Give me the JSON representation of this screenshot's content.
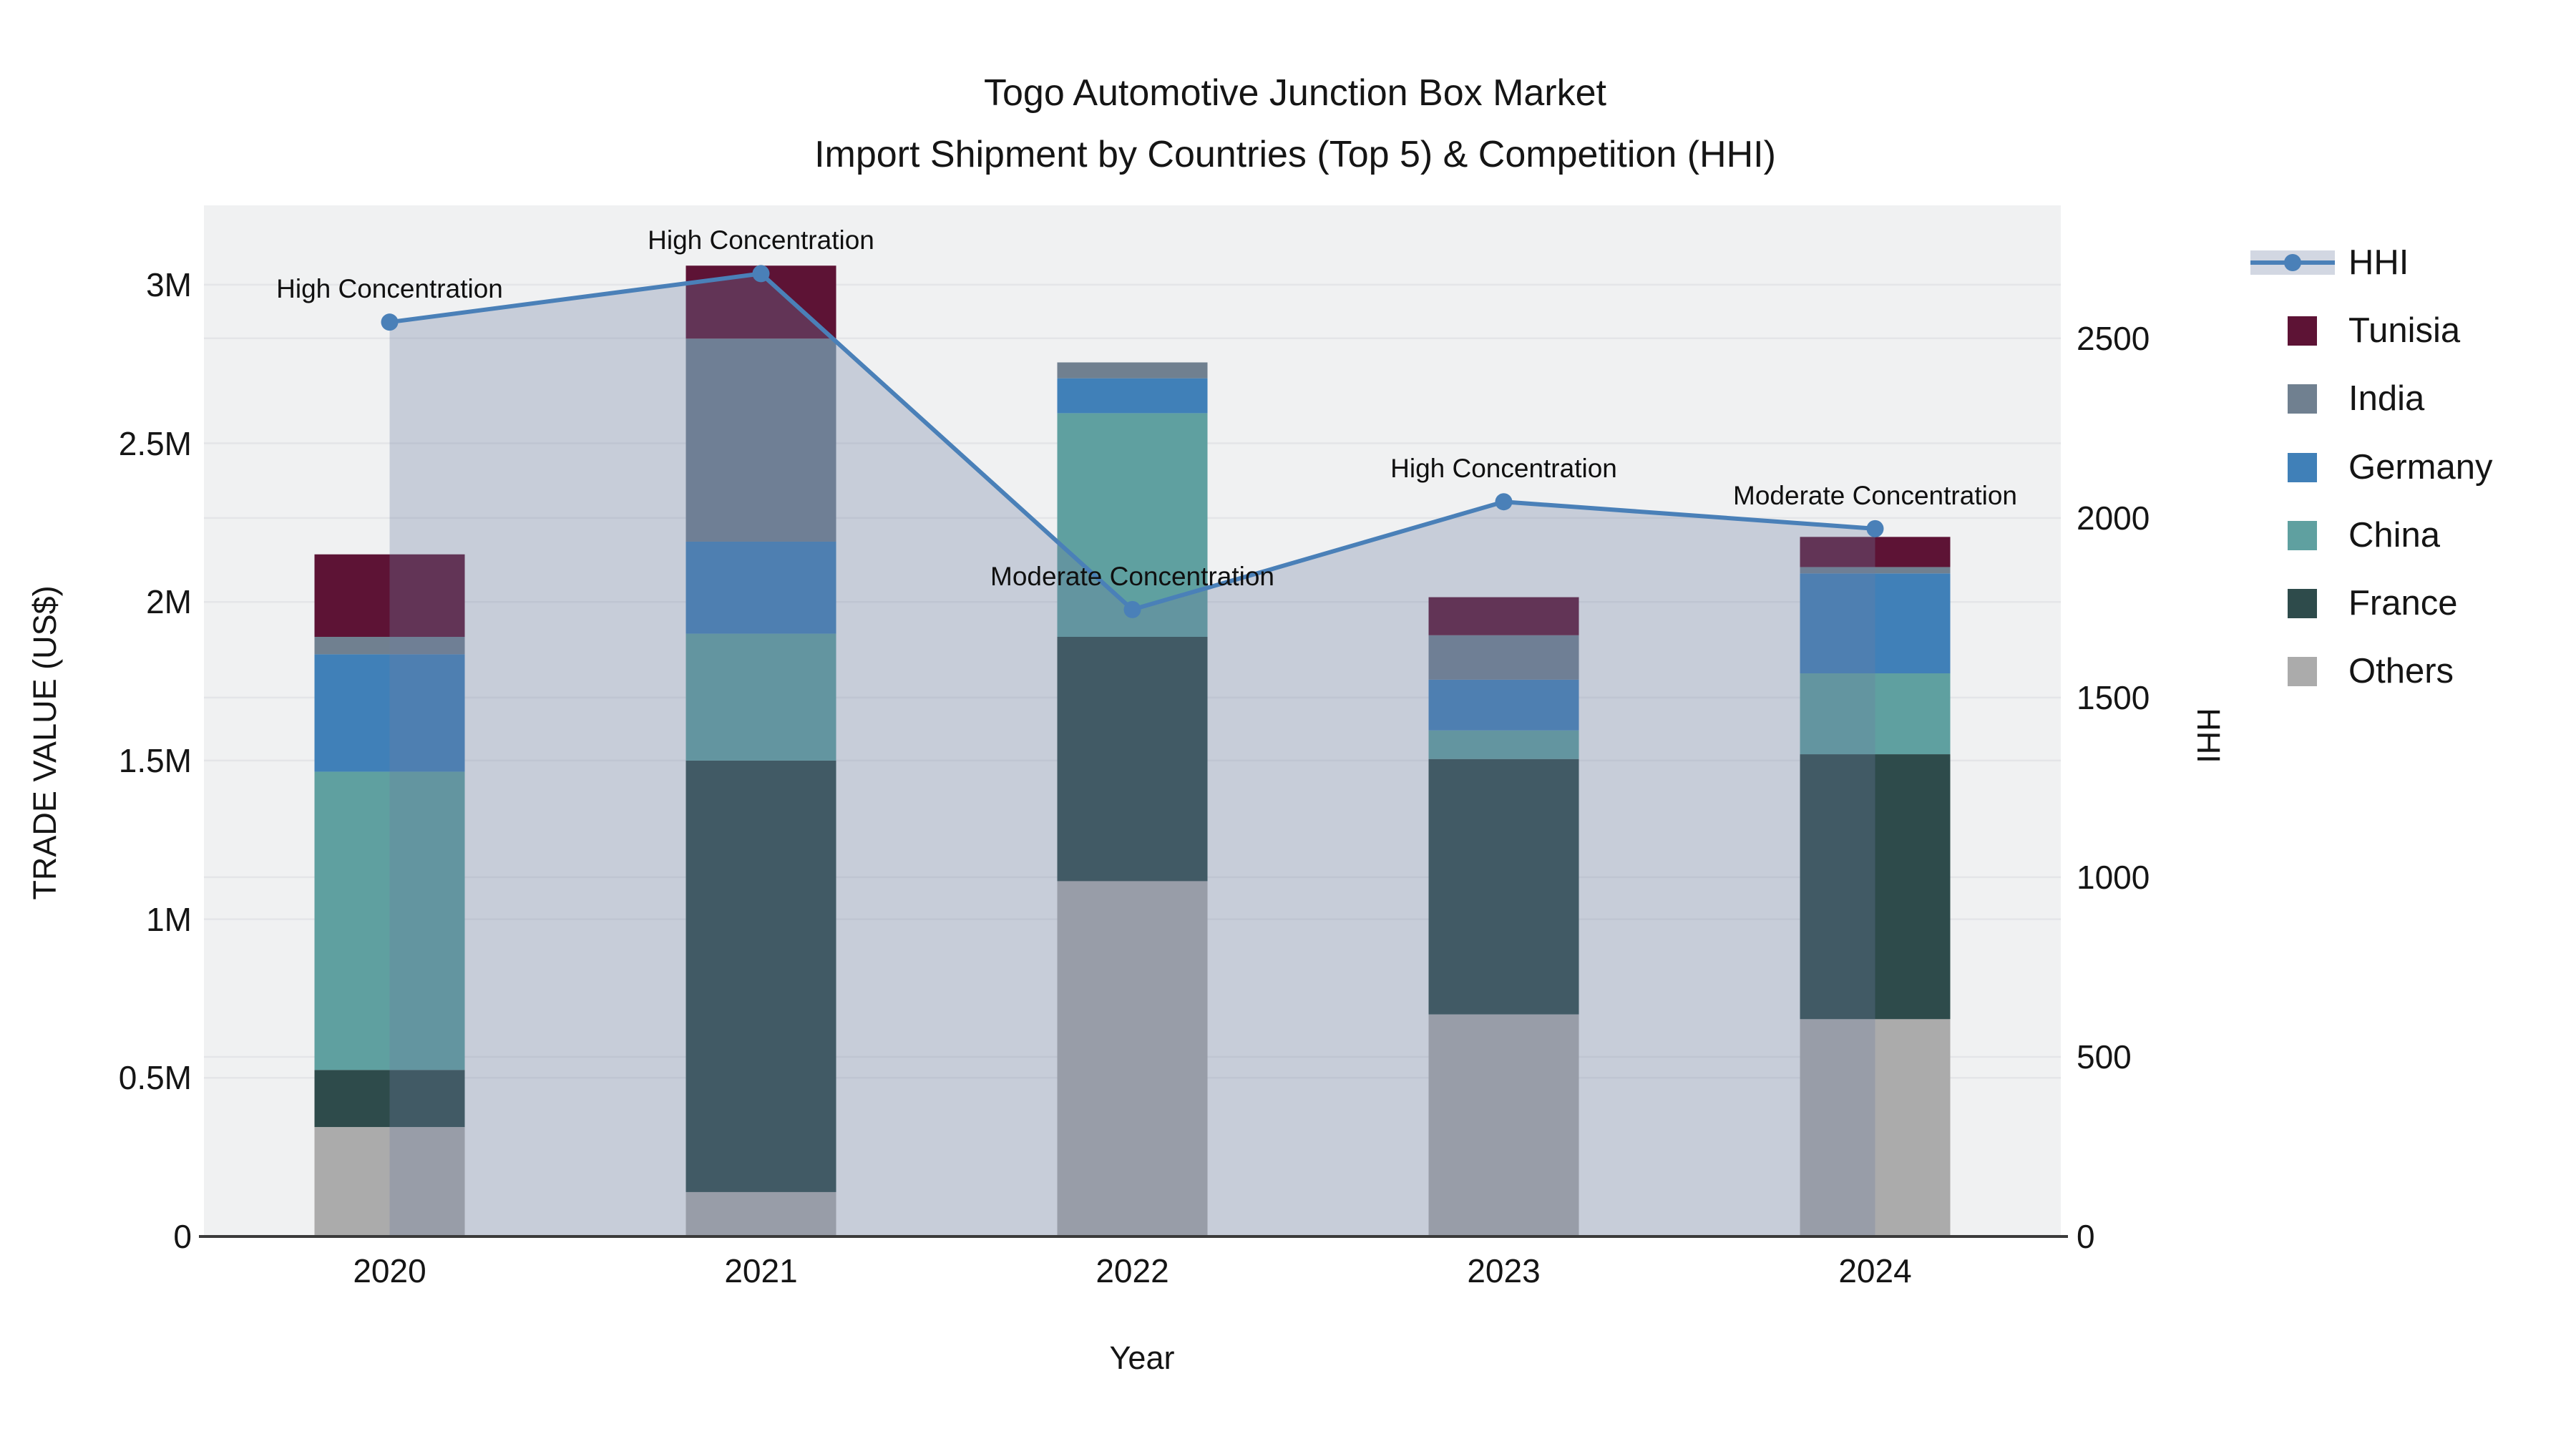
{
  "title": {
    "line1": "Togo Automotive Junction Box Market",
    "line2": "Import Shipment by Countries (Top 5) & Competition (HHI)"
  },
  "axes": {
    "x": {
      "title": "Year",
      "categories": [
        "2020",
        "2021",
        "2022",
        "2023",
        "2024"
      ]
    },
    "y_left": {
      "title": "TRADE VALUE (US$)",
      "ticks": [
        {
          "v": 0,
          "label": "0"
        },
        {
          "v": 0.5,
          "label": "0.5M"
        },
        {
          "v": 1,
          "label": "1M"
        },
        {
          "v": 1.5,
          "label": "1.5M"
        },
        {
          "v": 2,
          "label": "2M"
        },
        {
          "v": 2.5,
          "label": "2.5M"
        },
        {
          "v": 3,
          "label": "3M"
        }
      ]
    },
    "y_right": {
      "title": "HHI",
      "ticks": [
        {
          "v": 0,
          "label": "0"
        },
        {
          "v": 500,
          "label": "500"
        },
        {
          "v": 1000,
          "label": "1000"
        },
        {
          "v": 1500,
          "label": "1500"
        },
        {
          "v": 2000,
          "label": "2000"
        },
        {
          "v": 2500,
          "label": "2500"
        }
      ]
    }
  },
  "legend": {
    "items": [
      {
        "label": "HHI",
        "type": "line",
        "color": "#4A80B8",
        "band": "rgba(110,126,162,0.31)"
      },
      {
        "label": "Tunisia",
        "type": "square",
        "color": "#5D1335"
      },
      {
        "label": "India",
        "type": "square",
        "color": "#708090"
      },
      {
        "label": "Germany",
        "type": "square",
        "color": "#4080B8"
      },
      {
        "label": "China",
        "type": "square",
        "color": "#5FA0A0"
      },
      {
        "label": "France",
        "type": "square",
        "color": "#2E4B4B"
      },
      {
        "label": "Others",
        "type": "square",
        "color": "#ABABAB"
      }
    ]
  },
  "chart_data": {
    "type": "bar+line",
    "title": "Togo Automotive Junction Box Market — Import Shipment by Countries (Top 5) & Competition (HHI)",
    "xlabel": "Year",
    "ylabel": "TRADE VALUE (US$)",
    "y2label": "HHI",
    "categories": [
      "2020",
      "2021",
      "2022",
      "2023",
      "2024"
    ],
    "ylim": [
      0,
      3.25
    ],
    "y2lim": [
      0,
      2870
    ],
    "grid": true,
    "legend_position": "right",
    "series": [
      {
        "name": "Others",
        "color": "#ABABAB",
        "values_musd": [
          0.345,
          0.14,
          1.12,
          0.7,
          0.685
        ]
      },
      {
        "name": "France",
        "color": "#2E4B4B",
        "values_musd": [
          0.18,
          1.36,
          0.77,
          0.805,
          0.835
        ]
      },
      {
        "name": "China",
        "color": "#5FA0A0",
        "values_musd": [
          0.94,
          0.4,
          0.705,
          0.09,
          0.255
        ]
      },
      {
        "name": "Germany",
        "color": "#4080B8",
        "values_musd": [
          0.37,
          0.29,
          0.11,
          0.16,
          0.315
        ]
      },
      {
        "name": "India",
        "color": "#708090",
        "values_musd": [
          0.055,
          0.64,
          0.05,
          0.14,
          0.02
        ]
      },
      {
        "name": "Tunisia",
        "color": "#5D1335",
        "values_musd": [
          0.26,
          0.23,
          0.0,
          0.12,
          0.095
        ]
      }
    ],
    "totals_musd": [
      2.15,
      3.06,
      2.755,
      2.015,
      2.205
    ],
    "hhi": {
      "name": "HHI",
      "color": "#4A80B8",
      "fill": "rgba(110,126,162,0.31)",
      "values": [
        2545,
        2680,
        1745,
        2045,
        1970
      ]
    },
    "annotations": [
      {
        "year": "2020",
        "label": "High Concentration"
      },
      {
        "year": "2021",
        "label": "High Concentration"
      },
      {
        "year": "2022",
        "label": "Moderate Concentration"
      },
      {
        "year": "2023",
        "label": "High Concentration"
      },
      {
        "year": "2024",
        "label": "Moderate Concentration"
      }
    ]
  },
  "style": {
    "plot_bg": "#F0F1F2",
    "grid_color": "#E4E5E8",
    "axis_line_color": "#3B3B3B"
  }
}
